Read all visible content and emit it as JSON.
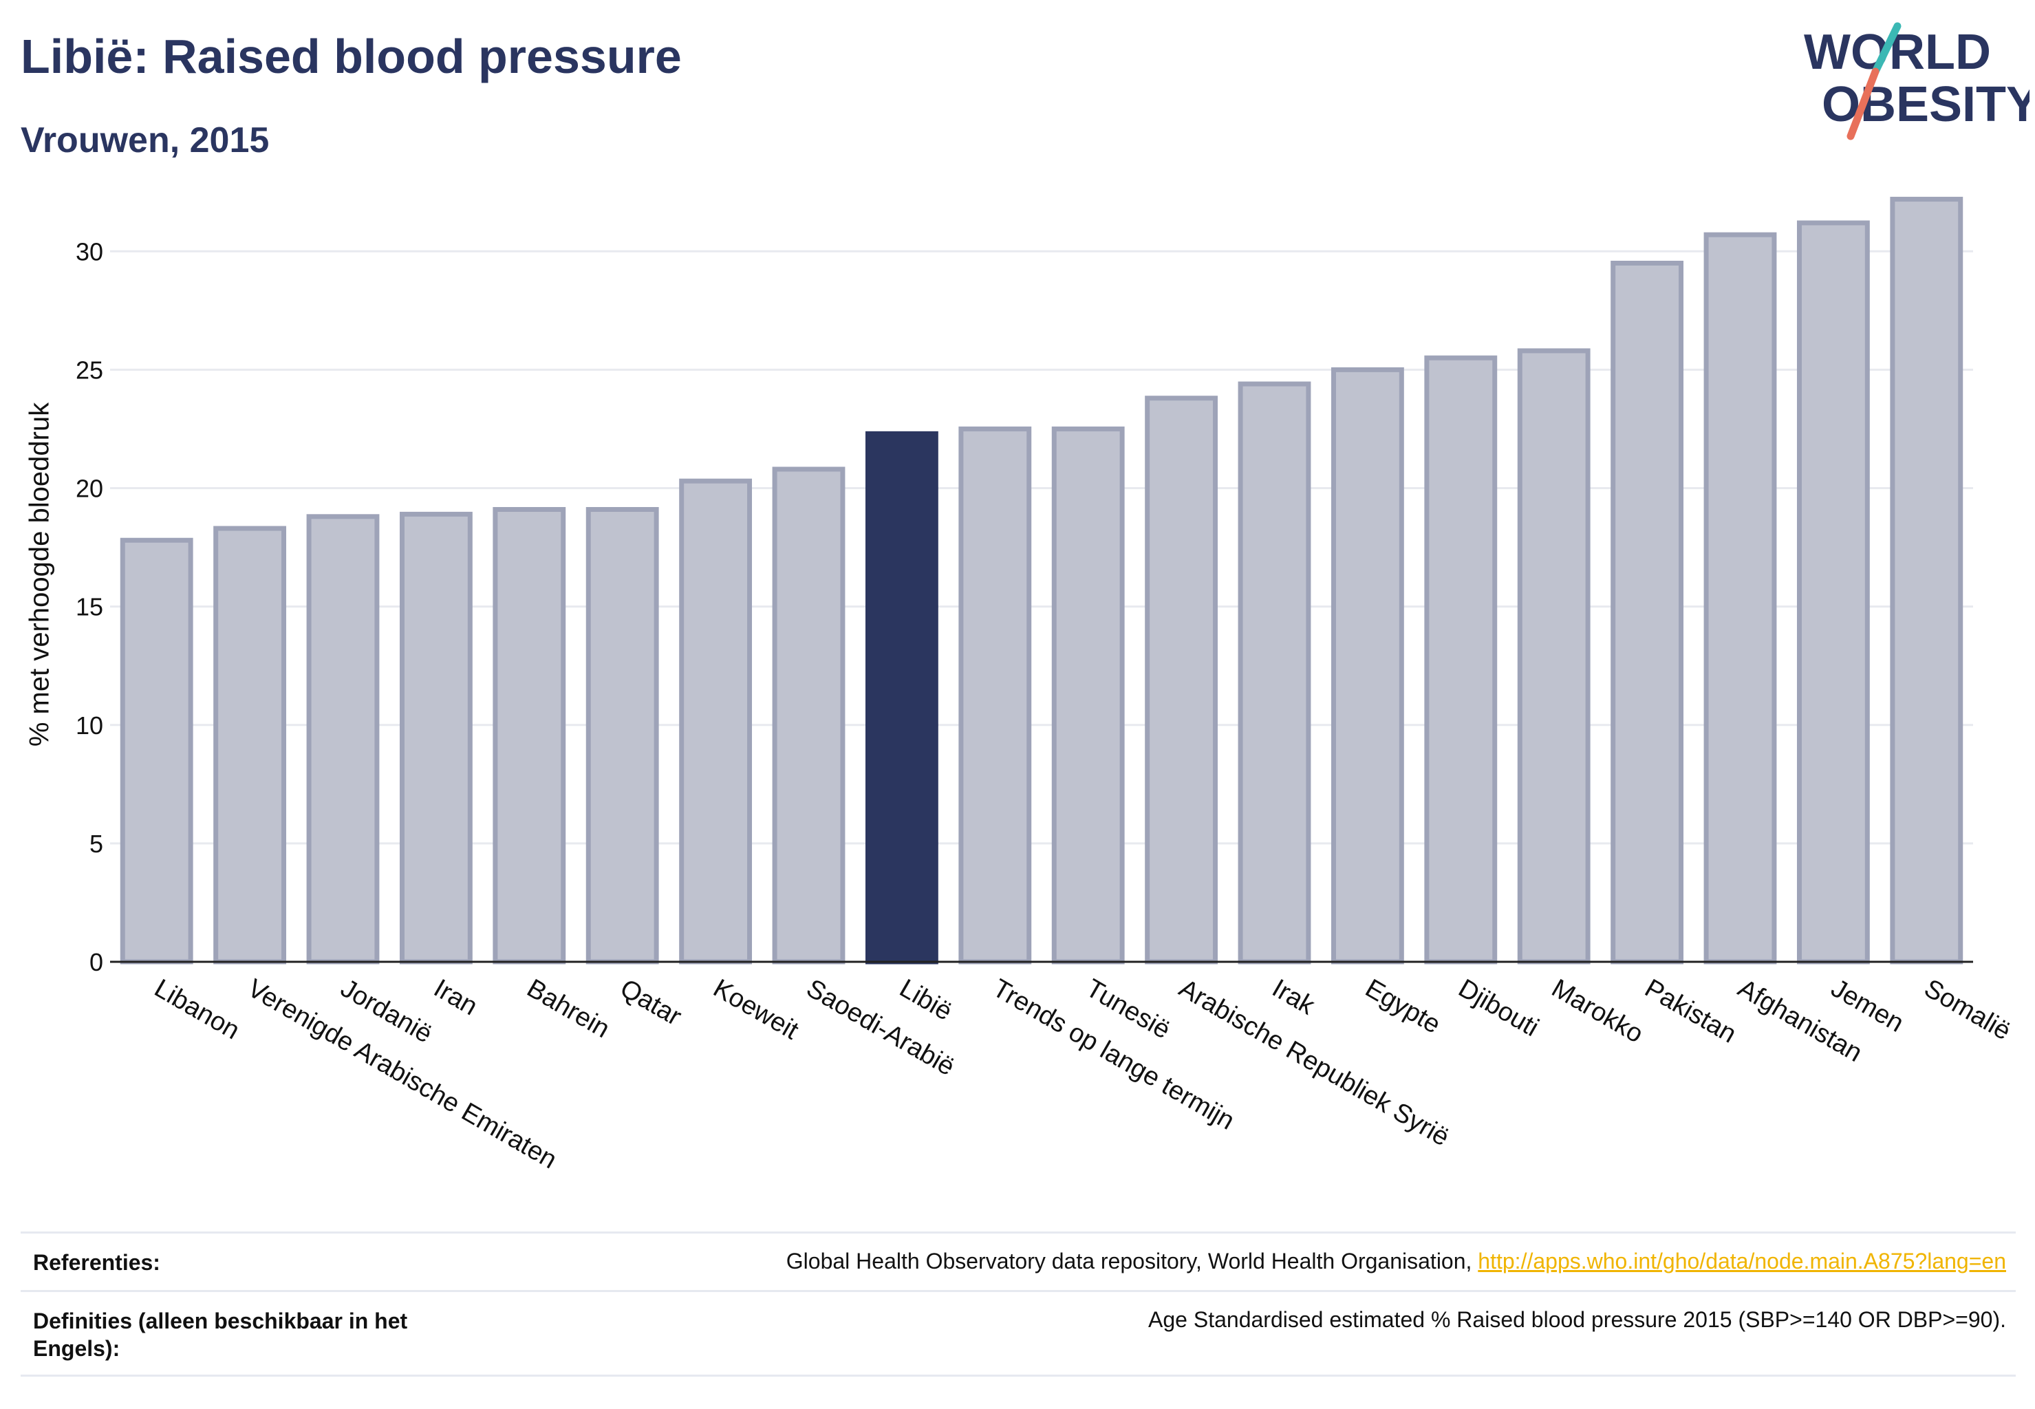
{
  "header": {
    "title": "Libië: Raised blood pressure",
    "subtitle": "Vrouwen, 2015"
  },
  "logo": {
    "line1": "WORLD",
    "line2": "OBESITY",
    "brand_colors": [
      "#2a3560",
      "#e8705a",
      "#3bb8b4"
    ]
  },
  "colors": {
    "highlight": "#2b365f",
    "bar_fill": "#bfc2cf",
    "bar_stroke": "#9ea3b8"
  },
  "chart_data": {
    "type": "bar",
    "title": "Libië: Raised blood pressure",
    "ylabel": "% met verhoogde bloeddruk",
    "xlabel": "",
    "ylim": [
      0,
      33
    ],
    "yticks": [
      0,
      5,
      10,
      15,
      20,
      25,
      30
    ],
    "grid": true,
    "highlight": "Libië",
    "categories": [
      "Libanon",
      "Verenigde Arabische Emiraten",
      "Jordanië",
      "Iran",
      "Bahrein",
      "Qatar",
      "Koeweit",
      "Saoedi-Arabië",
      "Libië",
      "Trends op lange termijn",
      "Tunesië",
      "Arabische Republiek Syrië",
      "Irak",
      "Egypte",
      "Djibouti",
      "Marokko",
      "Pakistan",
      "Afghanistan",
      "Jemen",
      "Somalië"
    ],
    "values": [
      17.8,
      18.3,
      18.8,
      18.9,
      19.1,
      19.1,
      20.3,
      20.8,
      22.3,
      22.5,
      22.5,
      23.8,
      24.4,
      25.0,
      25.5,
      25.8,
      29.5,
      30.7,
      31.2,
      32.2
    ]
  },
  "footer": {
    "ref_label": "Referenties:",
    "ref_text": "Global Health Observatory data repository, World Health Organisation, ",
    "ref_link": "http://apps.who.int/gho/data/node.main.A875?lang=en",
    "def_label": "Definities (alleen beschikbaar in het Engels):",
    "def_text": "Age Standardised estimated % Raised blood pressure 2015 (SBP>=140 OR DBP>=90)."
  }
}
